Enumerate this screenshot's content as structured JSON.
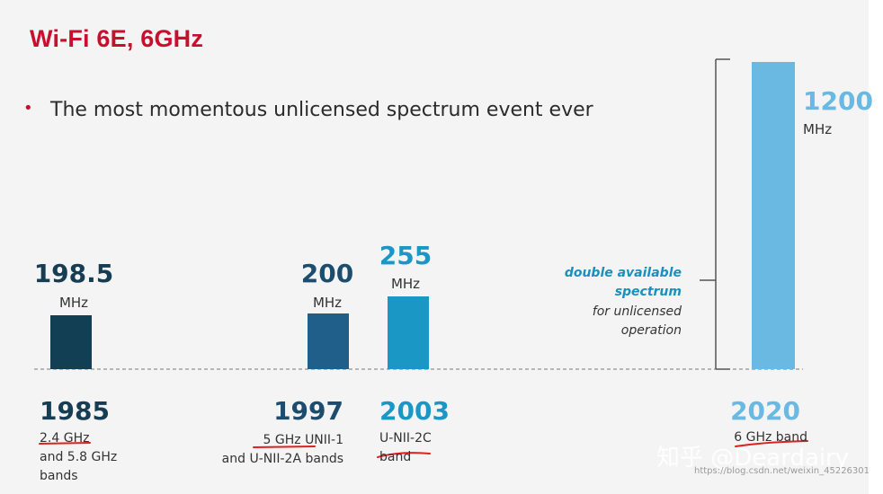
{
  "slide": {
    "title": "Wi-Fi 6E, 6GHz",
    "bullet": "The most momentous unlicensed spectrum event ever"
  },
  "colors": {
    "title": "#c8102e",
    "bar_1985": "#133f54",
    "bar_1997": "#1f5f8a",
    "bar_2003": "#1b97c6",
    "bar_2020": "#6ab9e2",
    "annotation_accent": "#1b8fc0"
  },
  "annotation": {
    "line1": "double available",
    "line2": "spectrum",
    "line3": "for unlicensed",
    "line4": "operation"
  },
  "watermark": {
    "text": "知乎 @Deardairy",
    "url": "https://blog.csdn.net/weixin_45226301"
  },
  "chart_data": {
    "type": "bar",
    "unit": "MHz",
    "categories": [
      "1985",
      "1997",
      "2003",
      "2020"
    ],
    "values": [
      198.5,
      200,
      255,
      1200
    ],
    "value_labels": [
      "198.5",
      "200",
      "255",
      "1200"
    ],
    "descriptions": [
      [
        "2.4 GHz",
        "and 5.8 GHz",
        "bands"
      ],
      [
        "5 GHz UNII-1",
        "and U-NII-2A bands"
      ],
      [
        "U-NII-2C",
        "band"
      ],
      [
        "6 GHz band"
      ]
    ],
    "ylim": [
      0,
      1200
    ],
    "grid": false,
    "legend": "none"
  }
}
